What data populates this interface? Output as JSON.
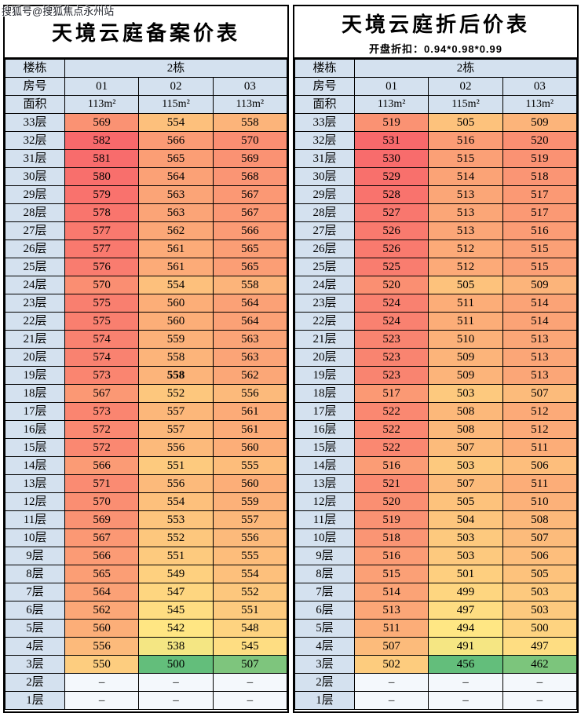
{
  "watermark": "搜狐号@搜狐焦点永州站",
  "colors": {
    "scale_min_green": "#63BE7B",
    "scale_mid_yellow": "#FFE984",
    "scale_max_red": "#F8696B",
    "header_bg": "#D4E1EF",
    "dash_bg": "#F4F8FC",
    "border": "#000000"
  },
  "chart_data": [
    {
      "type": "table",
      "title": "天境云庭备案价表",
      "subtitle": "",
      "colorscale": "green-yellow-red heatmap by price value",
      "header": {
        "building_label": "楼栋",
        "building_value": "2栋",
        "room_label": "房号",
        "rooms": [
          "01",
          "02",
          "03"
        ],
        "area_label": "面积",
        "areas": [
          "113m²",
          "115m²",
          "113m²"
        ]
      },
      "value_range": [
        500,
        582
      ],
      "rows": [
        {
          "floor": "33层",
          "values": [
            "569",
            "554",
            "558"
          ]
        },
        {
          "floor": "32层",
          "values": [
            "582",
            "566",
            "570"
          ]
        },
        {
          "floor": "31层",
          "values": [
            "581",
            "565",
            "569"
          ]
        },
        {
          "floor": "30层",
          "values": [
            "580",
            "564",
            "568"
          ]
        },
        {
          "floor": "29层",
          "values": [
            "579",
            "563",
            "567"
          ]
        },
        {
          "floor": "28层",
          "values": [
            "578",
            "563",
            "567"
          ]
        },
        {
          "floor": "27层",
          "values": [
            "577",
            "562",
            "566"
          ]
        },
        {
          "floor": "26层",
          "values": [
            "577",
            "561",
            "565"
          ]
        },
        {
          "floor": "25层",
          "values": [
            "576",
            "561",
            "565"
          ]
        },
        {
          "floor": "24层",
          "values": [
            "570",
            "554",
            "558"
          ]
        },
        {
          "floor": "23层",
          "values": [
            "575",
            "560",
            "564"
          ]
        },
        {
          "floor": "22层",
          "values": [
            "575",
            "560",
            "564"
          ]
        },
        {
          "floor": "21层",
          "values": [
            "574",
            "559",
            "563"
          ]
        },
        {
          "floor": "20层",
          "values": [
            "574",
            "558",
            "563"
          ]
        },
        {
          "floor": "19层",
          "values": [
            "573",
            "558",
            "562"
          ],
          "bold": 1
        },
        {
          "floor": "18层",
          "values": [
            "567",
            "552",
            "556"
          ]
        },
        {
          "floor": "17层",
          "values": [
            "573",
            "557",
            "561"
          ]
        },
        {
          "floor": "16层",
          "values": [
            "572",
            "557",
            "561"
          ]
        },
        {
          "floor": "15层",
          "values": [
            "572",
            "556",
            "560"
          ]
        },
        {
          "floor": "14层",
          "values": [
            "566",
            "551",
            "555"
          ]
        },
        {
          "floor": "13层",
          "values": [
            "571",
            "556",
            "560"
          ]
        },
        {
          "floor": "12层",
          "values": [
            "570",
            "554",
            "559"
          ]
        },
        {
          "floor": "11层",
          "values": [
            "569",
            "553",
            "557"
          ]
        },
        {
          "floor": "10层",
          "values": [
            "567",
            "552",
            "556"
          ]
        },
        {
          "floor": "9层",
          "values": [
            "566",
            "551",
            "555"
          ]
        },
        {
          "floor": "8层",
          "values": [
            "565",
            "549",
            "554"
          ]
        },
        {
          "floor": "7层",
          "values": [
            "564",
            "547",
            "552"
          ]
        },
        {
          "floor": "6层",
          "values": [
            "562",
            "545",
            "551"
          ]
        },
        {
          "floor": "5层",
          "values": [
            "560",
            "542",
            "548"
          ]
        },
        {
          "floor": "4层",
          "values": [
            "556",
            "538",
            "545"
          ]
        },
        {
          "floor": "3层",
          "values": [
            "550",
            "500",
            "507"
          ]
        },
        {
          "floor": "2层",
          "values": [
            "–",
            "–",
            "–"
          ]
        },
        {
          "floor": "1层",
          "values": [
            "–",
            "–",
            "–"
          ]
        }
      ]
    },
    {
      "type": "table",
      "title": "天境云庭折后价表",
      "subtitle": "开盘折扣：0.94*0.98*0.99",
      "colorscale": "green-yellow-red heatmap by price value",
      "header": {
        "building_label": "楼栋",
        "building_value": "2栋",
        "room_label": "房号",
        "rooms": [
          "01",
          "02",
          "03"
        ],
        "area_label": "面积",
        "areas": [
          "113m²",
          "115m²",
          "113m²"
        ]
      },
      "value_range": [
        456,
        531
      ],
      "rows": [
        {
          "floor": "33层",
          "values": [
            "519",
            "505",
            "509"
          ]
        },
        {
          "floor": "32层",
          "values": [
            "531",
            "516",
            "520"
          ]
        },
        {
          "floor": "31层",
          "values": [
            "530",
            "515",
            "519"
          ]
        },
        {
          "floor": "30层",
          "values": [
            "529",
            "514",
            "518"
          ]
        },
        {
          "floor": "29层",
          "values": [
            "528",
            "513",
            "517"
          ]
        },
        {
          "floor": "28层",
          "values": [
            "527",
            "513",
            "517"
          ]
        },
        {
          "floor": "27层",
          "values": [
            "526",
            "513",
            "516"
          ]
        },
        {
          "floor": "26层",
          "values": [
            "526",
            "512",
            "515"
          ]
        },
        {
          "floor": "25层",
          "values": [
            "525",
            "512",
            "515"
          ]
        },
        {
          "floor": "24层",
          "values": [
            "520",
            "505",
            "509"
          ]
        },
        {
          "floor": "23层",
          "values": [
            "524",
            "511",
            "514"
          ]
        },
        {
          "floor": "22层",
          "values": [
            "524",
            "511",
            "514"
          ]
        },
        {
          "floor": "21层",
          "values": [
            "523",
            "510",
            "513"
          ]
        },
        {
          "floor": "20层",
          "values": [
            "523",
            "509",
            "513"
          ]
        },
        {
          "floor": "19层",
          "values": [
            "523",
            "509",
            "513"
          ]
        },
        {
          "floor": "18层",
          "values": [
            "517",
            "503",
            "507"
          ]
        },
        {
          "floor": "17层",
          "values": [
            "522",
            "508",
            "512"
          ]
        },
        {
          "floor": "16层",
          "values": [
            "522",
            "508",
            "512"
          ]
        },
        {
          "floor": "15层",
          "values": [
            "522",
            "507",
            "511"
          ]
        },
        {
          "floor": "14层",
          "values": [
            "516",
            "503",
            "506"
          ]
        },
        {
          "floor": "13层",
          "values": [
            "521",
            "507",
            "511"
          ]
        },
        {
          "floor": "12层",
          "values": [
            "520",
            "505",
            "510"
          ]
        },
        {
          "floor": "11层",
          "values": [
            "519",
            "504",
            "508"
          ]
        },
        {
          "floor": "10层",
          "values": [
            "518",
            "503",
            "507"
          ]
        },
        {
          "floor": "9层",
          "values": [
            "516",
            "503",
            "506"
          ]
        },
        {
          "floor": "8层",
          "values": [
            "515",
            "501",
            "505"
          ]
        },
        {
          "floor": "7层",
          "values": [
            "514",
            "499",
            "503"
          ]
        },
        {
          "floor": "6层",
          "values": [
            "513",
            "497",
            "503"
          ]
        },
        {
          "floor": "5层",
          "values": [
            "511",
            "494",
            "500"
          ]
        },
        {
          "floor": "4层",
          "values": [
            "507",
            "491",
            "497"
          ]
        },
        {
          "floor": "3层",
          "values": [
            "502",
            "456",
            "462"
          ]
        },
        {
          "floor": "2层",
          "values": [
            "–",
            "–",
            "–"
          ]
        },
        {
          "floor": "1层",
          "values": [
            "–",
            "–",
            "–"
          ]
        }
      ]
    }
  ]
}
